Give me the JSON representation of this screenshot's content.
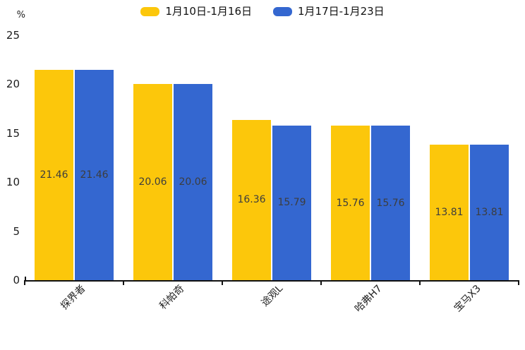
{
  "legend": {
    "items": [
      {
        "label": "1月10日-1月16日",
        "color": "#FCC70B"
      },
      {
        "label": "1月17日-1月23日",
        "color": "#3467D0"
      }
    ]
  },
  "chart_data": {
    "type": "bar",
    "categories": [
      "探界者",
      "科帕奇",
      "途观L",
      "哈弗H7",
      "宝马X3"
    ],
    "series": [
      {
        "name": "1月10日-1月16日",
        "color": "#FCC70B",
        "values": [
          21.46,
          20.06,
          16.36,
          15.76,
          13.81
        ]
      },
      {
        "name": "1月17日-1月23日",
        "color": "#3467D0",
        "values": [
          21.46,
          20.06,
          15.79,
          15.76,
          13.81
        ]
      }
    ],
    "ylabel": "%",
    "y_ticks": [
      0,
      5,
      10,
      15,
      20,
      25
    ],
    "ylim": [
      0,
      25
    ],
    "grid": false,
    "legend_position": "top-center",
    "value_label_position": "inside-middle",
    "value_label_color": "#3d3d3d",
    "x_label_rotation_deg": 45,
    "axis_color": "#111111",
    "background": "#ffffff"
  }
}
